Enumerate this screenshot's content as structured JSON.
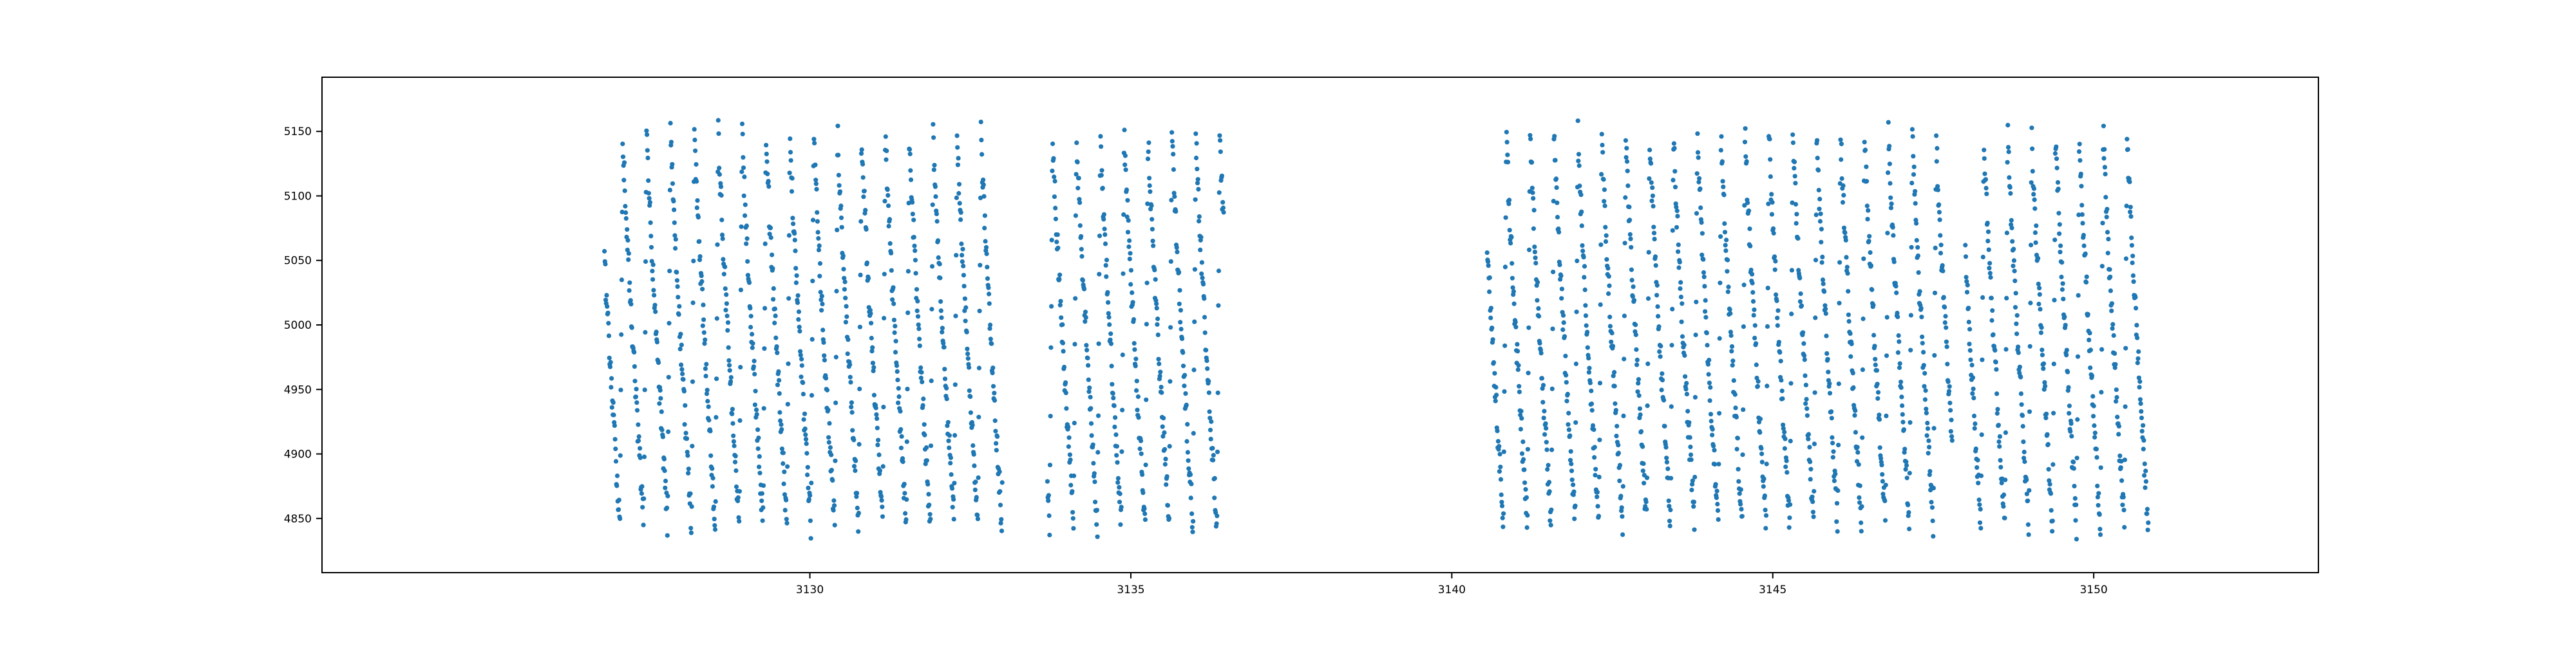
{
  "chart_data": {
    "type": "scatter",
    "title": "",
    "xlabel": "",
    "ylabel": "",
    "xlim": [
      3122.4,
      3153.5
    ],
    "ylim": [
      4808,
      5192
    ],
    "xticks": [
      3130,
      3135,
      3140,
      3145,
      3150
    ],
    "yticks": [
      4850,
      4900,
      4950,
      5000,
      5050,
      5100,
      5150
    ],
    "grid": false,
    "legend": "none",
    "marker_color": "#1f77b4",
    "series": [
      {
        "segments": [
          {
            "x_start": 3126.8,
            "x_end": 3133.0
          },
          {
            "x_start": 3133.7,
            "x_end": 3136.45
          },
          {
            "x_start": 3140.55,
            "x_end": 3147.8
          },
          {
            "x_start": 3148.0,
            "x_end": 3150.85
          }
        ],
        "period_days": 0.372,
        "phase_ref": 3127.04,
        "min_value": 4845,
        "max_value": 5150,
        "rise_fraction": 0.12,
        "cadence_days": 0.0069
      }
    ]
  }
}
